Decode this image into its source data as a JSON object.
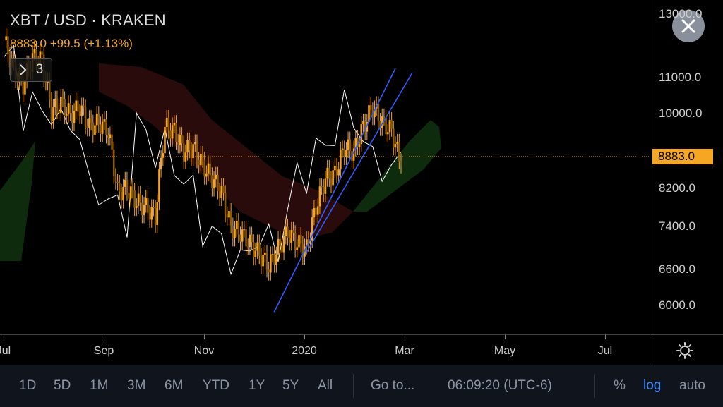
{
  "header": {
    "symbol_title": "XBT / USD · KRAKEN",
    "price_change": "8883.0 +99.5 (+1.13%)",
    "indicator_count": "3"
  },
  "price_axis": {
    "ticks": [
      "13000.0",
      "11000.0",
      "10000.0",
      "8200.0",
      "7400.0",
      "6600.0",
      "6000.0"
    ],
    "last_price": "8883.0"
  },
  "time_axis": {
    "labels": [
      "Jul",
      "Sep",
      "Nov",
      "2020",
      "Mar",
      "May",
      "Jul"
    ]
  },
  "bottom_bar": {
    "ranges": [
      "1D",
      "5D",
      "1M",
      "3M",
      "6M",
      "YTD",
      "1Y",
      "5Y",
      "All"
    ],
    "goto_label": "Go to...",
    "clock": "06:09:20 (UTC-6)",
    "percent_label": "%",
    "log_label": "log",
    "auto_label": "auto"
  },
  "colors": {
    "candle": "#f5a623",
    "compare_line": "#ffffff",
    "channel": "#2f5bff",
    "cloud_bull": "#103010",
    "cloud_bear": "#3a1010",
    "last_price_line": "#f5a623",
    "active_toggle": "#3d8bff"
  },
  "chart_data": {
    "type": "candlestick",
    "series": [
      {
        "name": "XBT / USD",
        "close_approx": [
          12200,
          11300,
          10900,
          11700,
          11600,
          10200,
          10400,
          10100,
          10300,
          9800,
          9900,
          9700,
          8300,
          8400,
          8100,
          8000,
          7800,
          9800,
          9700,
          9200,
          9300,
          8900,
          8600,
          8300,
          7600,
          7500,
          7300,
          7100,
          6900,
          7200,
          7500,
          7300,
          7200,
          8000,
          8600,
          8700,
          9300,
          9200,
          9800,
          10300,
          9900,
          9700,
          8883
        ]
      }
    ],
    "ylim": [
      5800,
      13500
    ],
    "log_scale": true,
    "last_price": 8883.0
  }
}
